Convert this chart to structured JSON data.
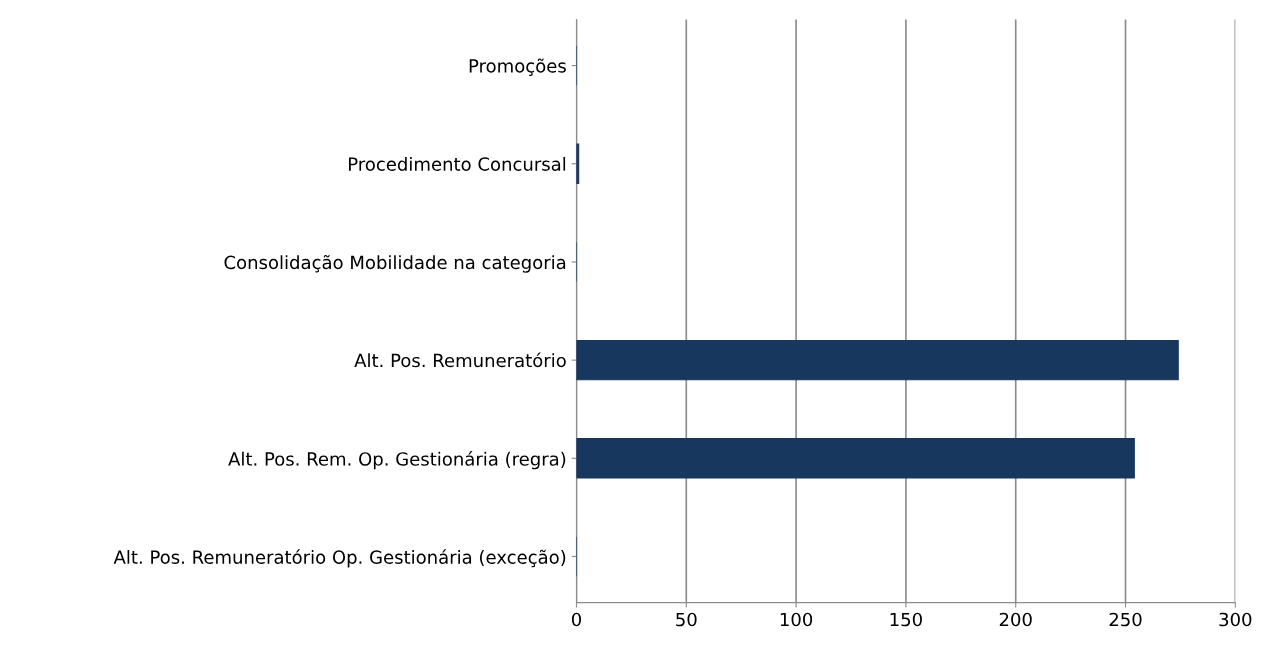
{
  "chart_data": {
    "type": "bar",
    "orientation": "horizontal",
    "categories": [
      "Promoções",
      "Procedimento Concursal",
      "Consolidação Mobilidade na categoria",
      "Alt. Pos. Remuneratório",
      "Alt. Pos. Rem. Op. Gestionária (regra)",
      "Alt. Pos. Remuneratório Op. Gestionária (exceção)"
    ],
    "values": [
      0,
      1,
      0,
      274,
      254,
      0
    ],
    "color": "#17375e",
    "xlim": [
      0,
      300
    ],
    "xticks": [
      0,
      50,
      100,
      150,
      200,
      250,
      300
    ],
    "grid": "x"
  }
}
